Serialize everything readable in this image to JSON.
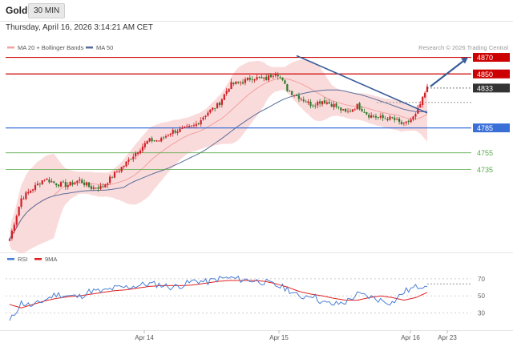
{
  "header": {
    "symbol": "Gold",
    "timeframe": "30 MIN",
    "timestamp": "Thursday, April 16, 2026 3:14:21 AM CET"
  },
  "legend": {
    "bollinger": "MA 20 + Bollinger Bands",
    "ma50": "MA 50",
    "credit": "Research © 2026 Trading Central"
  },
  "colors": {
    "bullish": "#d01f28",
    "bearish": "#2b7a2b",
    "band_fill": "#f9d5d5",
    "ma20": "#f2a0a0",
    "ma50": "#5a6e9a",
    "resistance": "#cc0000",
    "support_blue": "#3a6fd8",
    "support_green": "#5aa94b",
    "trendline": "#3a5d99",
    "rsi": "#4a7fd6",
    "rsi_ma": "#e02020",
    "current_price": "#333333"
  },
  "chart_data": [
    {
      "type": "candlestick",
      "x_ticks": [
        "Apr 14",
        "Apr 15",
        "Apr 16",
        "Apr 23"
      ],
      "ylim": [
        4635,
        4885
      ],
      "close_path": [
        4651,
        4700,
        4712,
        4724,
        4718,
        4716,
        4722,
        4713,
        4714,
        4729,
        4742,
        4757,
        4770,
        4770,
        4781,
        4783,
        4788,
        4803,
        4813,
        4837,
        4840,
        4846,
        4843,
        4853,
        4830,
        4822,
        4813,
        4818,
        4812,
        4803,
        4812,
        4800,
        4797,
        4796,
        4788,
        4800,
        4833
      ],
      "price_levels": [
        {
          "label": "4870",
          "value": 4870,
          "role": "resistance"
        },
        {
          "label": "4850",
          "value": 4850,
          "role": "resistance"
        },
        {
          "label": "4833",
          "value": 4833,
          "role": "current"
        },
        {
          "label": "4785",
          "value": 4785,
          "role": "pivot"
        },
        {
          "label": "4755",
          "value": 4755,
          "role": "support"
        },
        {
          "label": "4735",
          "value": 4735,
          "role": "support"
        }
      ],
      "series": [
        {
          "name": "MA 20 + Bollinger Bands"
        },
        {
          "name": "MA 50"
        }
      ]
    },
    {
      "type": "line",
      "y_ticks": [
        "70",
        "50",
        "30"
      ],
      "ylim": [
        10,
        82
      ],
      "series": [
        {
          "name": "RSI",
          "values": [
            20,
            42,
            38,
            45,
            52,
            50,
            49,
            56,
            55,
            59,
            60,
            62,
            64,
            63,
            60,
            63,
            68,
            66,
            70,
            71,
            69,
            68,
            66,
            62,
            58,
            48,
            52,
            42,
            40,
            43,
            52,
            49,
            45,
            42,
            55,
            60,
            64
          ]
        },
        {
          "name": "9MA",
          "values": [
            40,
            36,
            40,
            44,
            47,
            49,
            50,
            52,
            54,
            56,
            57,
            59,
            61,
            62,
            62,
            62,
            63,
            65,
            67,
            68,
            68,
            68,
            67,
            64,
            60,
            55,
            52,
            50,
            47,
            45,
            45,
            48,
            50,
            48,
            45,
            48,
            54
          ]
        }
      ]
    }
  ]
}
